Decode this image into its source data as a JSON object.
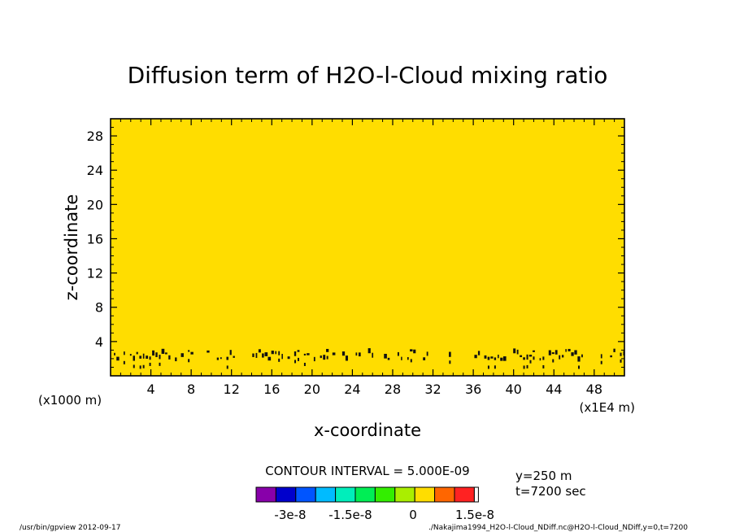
{
  "chart_data": {
    "type": "heatmap",
    "title": "Diffusion term of H2O-l-Cloud mixing ratio",
    "xlabel": "x-coordinate",
    "ylabel": "z-coordinate",
    "x_scale_left": "(x1000 m)",
    "x_scale_right": "(x1E4 m)",
    "xlim": [
      0,
      51
    ],
    "ylim": [
      0,
      30
    ],
    "xticks": [
      4,
      8,
      12,
      16,
      20,
      24,
      28,
      32,
      36,
      40,
      44,
      48
    ],
    "yticks": [
      4,
      8,
      12,
      16,
      20,
      24,
      28
    ],
    "xtick_labels": [
      "4",
      "8",
      "12",
      "16",
      "20",
      "24",
      "28",
      "32",
      "36",
      "40",
      "44",
      "48"
    ],
    "ytick_labels": [
      "4",
      "8",
      "12",
      "16",
      "20",
      "24",
      "28"
    ],
    "background_level_color": "#ffdd00",
    "contour_band": {
      "z_min": 1.0,
      "z_max": 3.2,
      "description_value": "small dark contour blobs near z≈2–3"
    },
    "contour_interval_text": "CONTOUR INTERVAL = 5.000E-09",
    "colorbar": {
      "colors": [
        "#8800aa",
        "#0000cc",
        "#0055ff",
        "#00bbff",
        "#00eebb",
        "#00ee55",
        "#33ee00",
        "#aaee00",
        "#ffdd00",
        "#ff6600",
        "#ff2222",
        "#ffffff"
      ],
      "tick_labels": [
        "-3e-8",
        "-1.5e-8",
        "0",
        "1.5e-8"
      ]
    },
    "info": {
      "y": "y=250 m",
      "t": "t=7200 sec"
    }
  },
  "footer": {
    "left": "/usr/bin/gpview  2012-09-17",
    "right": "./Nakajima1994_H2O-l-Cloud_NDiff.nc@H2O-l-Cloud_NDiff,y=0,t=7200"
  }
}
